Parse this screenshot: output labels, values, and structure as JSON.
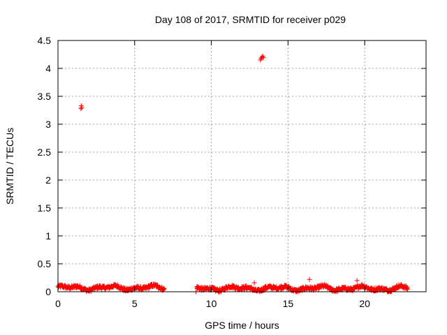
{
  "chart_data": {
    "type": "scatter",
    "title": "Day 108 of 2017, SRMTID for receiver p029",
    "xlabel": "GPS time / hours",
    "ylabel": "SRMTID / TECUs",
    "xlim": [
      0,
      24
    ],
    "ylim": [
      0,
      4.5
    ],
    "x_ticks": [
      0,
      5,
      10,
      15,
      20
    ],
    "y_ticks": [
      0,
      0.5,
      1,
      1.5,
      2,
      2.5,
      3,
      3.5,
      4,
      4.5
    ],
    "grid": true,
    "legend": "none",
    "marker": "plus",
    "color": "#ff0000",
    "series": [
      {
        "segments": [
          {
            "x_start": 0.0,
            "x_end": 6.95,
            "baseline": 0.07,
            "amplitude": 0.06
          },
          {
            "x_start": 9.05,
            "x_end": 22.8,
            "baseline": 0.06,
            "amplitude": 0.06
          }
        ],
        "outliers": [
          {
            "x": 1.5,
            "y": 3.28
          },
          {
            "x": 1.52,
            "y": 3.33
          },
          {
            "x": 1.55,
            "y": 3.3
          },
          {
            "x": 13.2,
            "y": 4.15
          },
          {
            "x": 13.25,
            "y": 4.18
          },
          {
            "x": 13.3,
            "y": 4.2
          },
          {
            "x": 13.35,
            "y": 4.22
          },
          {
            "x": 13.4,
            "y": 4.19
          },
          {
            "x": 16.4,
            "y": 0.22
          },
          {
            "x": 19.5,
            "y": 0.2
          },
          {
            "x": 12.8,
            "y": 0.16
          },
          {
            "x": 9.0,
            "y": 0.0
          }
        ]
      }
    ]
  }
}
